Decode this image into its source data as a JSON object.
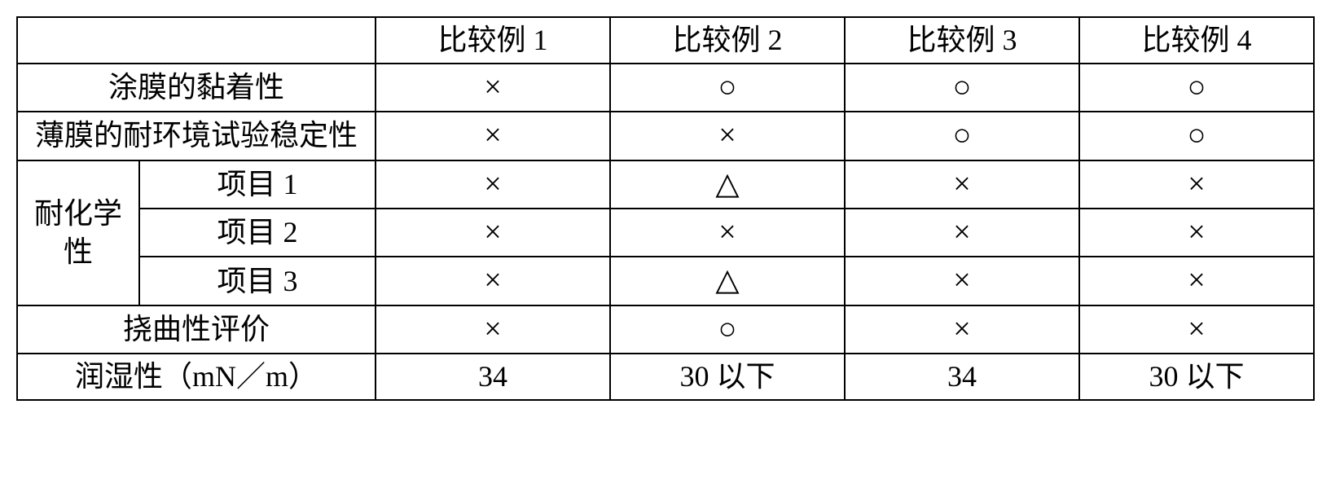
{
  "table": {
    "headers": {
      "blank": "",
      "col1": "比较例 1",
      "col2": "比较例 2",
      "col3": "比较例 3",
      "col4": "比较例 4"
    },
    "rows": {
      "adhesion": {
        "label": "涂膜的黏着性",
        "c1": "×",
        "c2": "○",
        "c3": "○",
        "c4": "○"
      },
      "env_stability": {
        "label": "薄膜的耐环境试验稳定性",
        "c1": "×",
        "c2": "×",
        "c3": "○",
        "c4": "○"
      },
      "chem_group_label": "耐化学性",
      "chem1": {
        "label": "项目 1",
        "c1": "×",
        "c2": "△",
        "c3": "×",
        "c4": "×"
      },
      "chem2": {
        "label": "项目 2",
        "c1": "×",
        "c2": "×",
        "c3": "×",
        "c4": "×"
      },
      "chem3": {
        "label": "项目 3",
        "c1": "×",
        "c2": "△",
        "c3": "×",
        "c4": "×"
      },
      "flex": {
        "label": "挠曲性评价",
        "c1": "×",
        "c2": "○",
        "c3": "×",
        "c4": "×"
      },
      "wet": {
        "label": "润湿性（mN／m）",
        "c1": "34",
        "c2": "30 以下",
        "c3": "34",
        "c4": "30 以下"
      }
    },
    "colors": {
      "border": "#000000",
      "background": "#ffffff",
      "text": "#000000"
    },
    "font": {
      "family": "SimSun",
      "size_pt": 27,
      "weight": "normal"
    }
  }
}
